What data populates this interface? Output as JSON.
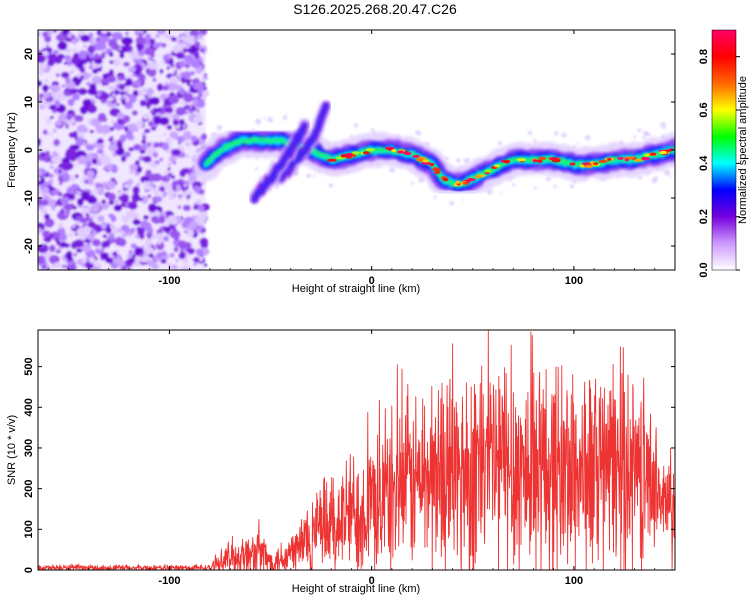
{
  "title": "S126.2025.268.20.47.C26",
  "chart_data": [
    {
      "type": "heatmap",
      "name": "spectrogram",
      "xlabel": "Height of straight line (km)",
      "ylabel": "Frequency (Hz)",
      "xlim": [
        -165,
        150
      ],
      "ylim": [
        -25,
        25
      ],
      "xticks": [
        -100,
        0,
        100
      ],
      "xtick_labels": [
        "-100",
        "0",
        "100"
      ],
      "yticks": [
        -20,
        -10,
        0,
        10,
        20
      ],
      "ytick_labels": [
        "-20",
        "-10",
        "0",
        "10",
        "20"
      ],
      "noise_region_x": [
        -165,
        -82
      ],
      "ridge": {
        "x": [
          -82,
          -75,
          -65,
          -55,
          -45,
          -38,
          -30,
          -20,
          -10,
          0,
          10,
          20,
          30,
          35,
          40,
          45,
          50,
          60,
          70,
          80,
          90,
          100,
          110,
          120,
          130,
          140,
          150
        ],
        "y": [
          -3,
          0,
          2,
          2,
          2,
          1,
          0,
          -2,
          -1,
          0,
          0,
          -1,
          -3,
          -6,
          -7,
          -7,
          -6,
          -4,
          -2,
          -2,
          -2,
          -3,
          -3,
          -2,
          -2,
          -1,
          0
        ]
      },
      "branches": [
        {
          "x": [
            -45,
            -35,
            -28,
            -22
          ],
          "y": [
            -6,
            -1,
            3,
            10
          ]
        },
        {
          "x": [
            -58,
            -48,
            -40,
            -33
          ],
          "y": [
            -10,
            -5,
            0,
            5
          ]
        }
      ],
      "colorbar": {
        "label": "Normalized spectral amplitude",
        "range": [
          0.0,
          0.9
        ],
        "ticks": [
          0.0,
          0.2,
          0.4,
          0.6,
          0.8
        ],
        "tick_labels": [
          "0.0",
          "0.2",
          "0.4",
          "0.6",
          "0.8"
        ],
        "colors": [
          "#ffffff",
          "#cc99ff",
          "#7700dd",
          "#0000ff",
          "#00ffff",
          "#00ff00",
          "#ffff00",
          "#ff6600",
          "#ff0000",
          "#ff0066"
        ]
      }
    },
    {
      "type": "line",
      "name": "snr",
      "xlabel": "Height of straight line (km)",
      "ylabel": "SNR (10 * v/v)",
      "xlim": [
        -165,
        150
      ],
      "ylim": [
        0,
        590
      ],
      "xticks": [
        -100,
        0,
        100
      ],
      "xtick_labels": [
        "-100",
        "0",
        "100"
      ],
      "yticks": [
        0,
        100,
        200,
        300,
        400,
        500
      ],
      "ytick_labels": [
        "0",
        "100",
        "200",
        "300",
        "400",
        "500"
      ],
      "color": "#ee3333",
      "envelope": {
        "x": [
          -165,
          -80,
          -75,
          -70,
          -60,
          -55,
          -50,
          -40,
          -35,
          -30,
          -20,
          -10,
          0,
          10,
          20,
          30,
          40,
          50,
          60,
          70,
          80,
          90,
          100,
          110,
          120,
          130,
          135,
          140,
          145,
          150
        ],
        "base": [
          5,
          5,
          20,
          30,
          35,
          40,
          20,
          40,
          60,
          80,
          110,
          140,
          160,
          190,
          220,
          230,
          240,
          240,
          260,
          250,
          240,
          250,
          240,
          240,
          250,
          260,
          230,
          220,
          150,
          160
        ],
        "amp": [
          8,
          8,
          25,
          45,
          60,
          80,
          30,
          60,
          90,
          110,
          130,
          150,
          170,
          200,
          220,
          250,
          270,
          290,
          300,
          300,
          280,
          280,
          270,
          260,
          260,
          260,
          220,
          140,
          120,
          260
        ]
      }
    }
  ]
}
